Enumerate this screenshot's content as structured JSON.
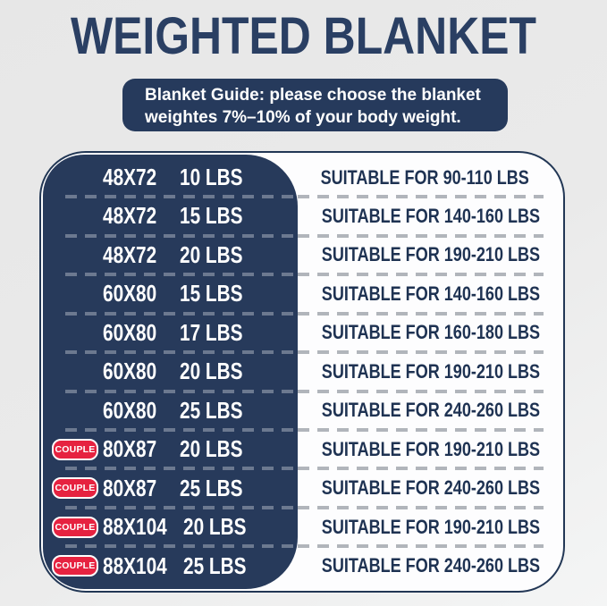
{
  "header": {
    "title": "WEIGHTED BLANKET"
  },
  "banner": {
    "line1": "Blanket Guide: please choose the blanket",
    "line2": "weightes 7%–10% of your body weight."
  },
  "table": {
    "couple_badge_label": "COUPLE",
    "rows": [
      {
        "couple": false,
        "size": "48X72",
        "weight": "10 LBS",
        "suitable": "SUITABLE FOR 90-110 LBS"
      },
      {
        "couple": false,
        "size": "48X72",
        "weight": "15 LBS",
        "suitable": "SUITABLE FOR 140-160 LBS"
      },
      {
        "couple": false,
        "size": "48X72",
        "weight": "20 LBS",
        "suitable": "SUITABLE FOR 190-210 LBS"
      },
      {
        "couple": false,
        "size": "60X80",
        "weight": "15 LBS",
        "suitable": "SUITABLE FOR 140-160 LBS"
      },
      {
        "couple": false,
        "size": "60X80",
        "weight": "17 LBS",
        "suitable": "SUITABLE FOR 160-180 LBS"
      },
      {
        "couple": false,
        "size": "60X80",
        "weight": "20 LBS",
        "suitable": "SUITABLE FOR 190-210 LBS"
      },
      {
        "couple": false,
        "size": "60X80",
        "weight": "25 LBS",
        "suitable": "SUITABLE FOR 240-260 LBS"
      },
      {
        "couple": true,
        "size": "80X87",
        "weight": "20 LBS",
        "suitable": "SUITABLE FOR 190-210 LBS"
      },
      {
        "couple": true,
        "size": "80X87",
        "weight": "25 LBS",
        "suitable": "SUITABLE FOR 240-260 LBS"
      },
      {
        "couple": true,
        "size": "88X104",
        "weight": "20 LBS",
        "suitable": "SUITABLE FOR 190-210 LBS"
      },
      {
        "couple": true,
        "size": "88X104",
        "weight": "25 LBS",
        "suitable": "SUITABLE FOR 240-260 LBS"
      }
    ]
  },
  "colors": {
    "navy": "#263a5c",
    "navy_text": "#1e3252",
    "title_navy": "#2a3f63",
    "badge_red": "#e62240",
    "page_bg": "#e9e9e9",
    "card_bg": "#fdfdfe"
  }
}
